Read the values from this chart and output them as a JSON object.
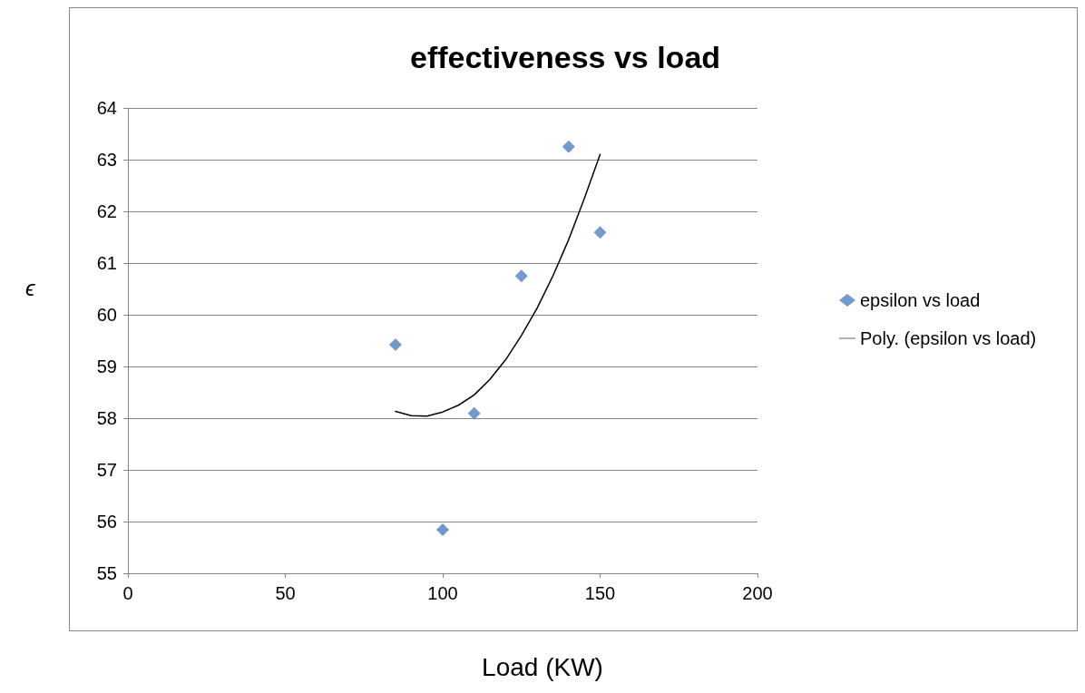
{
  "chart_data": {
    "type": "scatter",
    "title": "effectiveness vs load",
    "xlabel": "Load (KW)",
    "ylabel": "ϵ",
    "xlim": [
      0,
      200
    ],
    "xticks": [
      0,
      50,
      100,
      150,
      200
    ],
    "ylim": [
      55,
      64
    ],
    "yticks": [
      55,
      56,
      57,
      58,
      59,
      60,
      61,
      62,
      63,
      64
    ],
    "grid": "y",
    "legend": "right",
    "marker": "diamond",
    "series": [
      {
        "name": "epsilon vs load",
        "color": "#4f81bd",
        "x": [
          85,
          100,
          110,
          125,
          140,
          150
        ],
        "values": [
          59.42,
          55.84,
          58.09,
          60.75,
          63.25,
          61.59
        ]
      },
      {
        "name": "Poly. (epsilon vs load)",
        "type": "line",
        "color": "#000000",
        "marker": "none",
        "line_style": "solid",
        "x": [
          85,
          90,
          95,
          100,
          105,
          110,
          115,
          120,
          125,
          130,
          135,
          140,
          145,
          150
        ],
        "values": [
          58.13,
          58.05,
          58.04,
          58.12,
          58.25,
          58.45,
          58.75,
          59.13,
          59.6,
          60.13,
          60.75,
          61.45,
          62.25,
          63.1
        ]
      }
    ]
  }
}
